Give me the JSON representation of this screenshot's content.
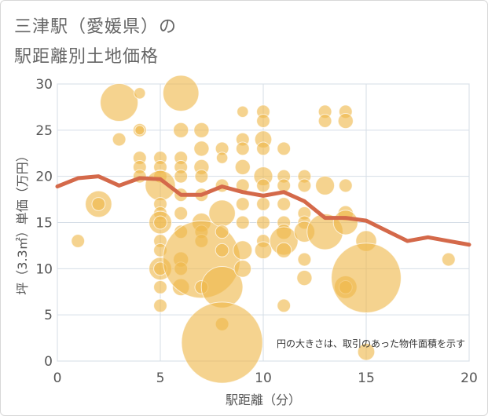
{
  "title_line1": "三津駅（愛媛県）の",
  "title_line2": "駅距離別土地価格",
  "chart_data": {
    "type": "scatter",
    "xlabel": "駅距離（分）",
    "ylabel": "坪（3.3㎡）単価（万円）",
    "xlim": [
      0,
      20
    ],
    "ylim": [
      0,
      30
    ],
    "xticks": [
      0,
      5,
      10,
      15,
      20
    ],
    "yticks": [
      0,
      5,
      10,
      15,
      20,
      25,
      30
    ],
    "annotation": "円の大きさは、取引のあった物件面積を示す",
    "colors": {
      "bubble": "#efb84a",
      "line": "#d4694a",
      "grid": "#d5dde6"
    },
    "bubbles": [
      {
        "x": 1,
        "y": 13,
        "s": 1.4
      },
      {
        "x": 2,
        "y": 17,
        "s": 2.8
      },
      {
        "x": 2,
        "y": 17,
        "s": 1.4
      },
      {
        "x": 3,
        "y": 28,
        "s": 4.0
      },
      {
        "x": 3,
        "y": 24,
        "s": 1.4
      },
      {
        "x": 4,
        "y": 29,
        "s": 1.2
      },
      {
        "x": 4,
        "y": 25,
        "s": 1.4
      },
      {
        "x": 4,
        "y": 25,
        "s": 1.0
      },
      {
        "x": 4,
        "y": 22,
        "s": 1.4
      },
      {
        "x": 4,
        "y": 21,
        "s": 1.4
      },
      {
        "x": 4,
        "y": 20,
        "s": 1.4
      },
      {
        "x": 5,
        "y": 22,
        "s": 1.4
      },
      {
        "x": 5,
        "y": 21,
        "s": 1.4
      },
      {
        "x": 5,
        "y": 20,
        "s": 1.4
      },
      {
        "x": 5,
        "y": 19,
        "s": 3.2
      },
      {
        "x": 5,
        "y": 17,
        "s": 1.4
      },
      {
        "x": 5,
        "y": 16,
        "s": 1.4
      },
      {
        "x": 5,
        "y": 15,
        "s": 2.4
      },
      {
        "x": 5,
        "y": 15,
        "s": 1.4
      },
      {
        "x": 5,
        "y": 13,
        "s": 1.4
      },
      {
        "x": 5,
        "y": 12,
        "s": 1.4
      },
      {
        "x": 5,
        "y": 10,
        "s": 2.4
      },
      {
        "x": 5,
        "y": 10,
        "s": 1.4
      },
      {
        "x": 5,
        "y": 8,
        "s": 1.4
      },
      {
        "x": 5,
        "y": 6,
        "s": 1.4
      },
      {
        "x": 6,
        "y": 29,
        "s": 3.8
      },
      {
        "x": 6,
        "y": 25,
        "s": 1.6
      },
      {
        "x": 6,
        "y": 22,
        "s": 1.4
      },
      {
        "x": 6,
        "y": 21,
        "s": 1.4
      },
      {
        "x": 6,
        "y": 20,
        "s": 1.4
      },
      {
        "x": 6,
        "y": 18,
        "s": 1.4
      },
      {
        "x": 6,
        "y": 16,
        "s": 1.4
      },
      {
        "x": 6,
        "y": 14,
        "s": 1.4
      },
      {
        "x": 6,
        "y": 11,
        "s": 1.6
      },
      {
        "x": 6,
        "y": 10,
        "s": 1.4
      },
      {
        "x": 6,
        "y": 8,
        "s": 1.8
      },
      {
        "x": 7,
        "y": 25,
        "s": 1.6
      },
      {
        "x": 7,
        "y": 23,
        "s": 1.6
      },
      {
        "x": 7,
        "y": 21,
        "s": 1.6
      },
      {
        "x": 7,
        "y": 20,
        "s": 1.4
      },
      {
        "x": 7,
        "y": 18,
        "s": 1.4
      },
      {
        "x": 7,
        "y": 15,
        "s": 2.0
      },
      {
        "x": 7,
        "y": 14,
        "s": 1.4
      },
      {
        "x": 7,
        "y": 13,
        "s": 1.4
      },
      {
        "x": 7,
        "y": 11,
        "s": 8.2
      },
      {
        "x": 7,
        "y": 8,
        "s": 1.4
      },
      {
        "x": 8,
        "y": 23,
        "s": 1.4
      },
      {
        "x": 8,
        "y": 22,
        "s": 1.2
      },
      {
        "x": 8,
        "y": 19,
        "s": 1.4
      },
      {
        "x": 8,
        "y": 16,
        "s": 2.8
      },
      {
        "x": 8,
        "y": 14,
        "s": 1.4
      },
      {
        "x": 8,
        "y": 12,
        "s": 1.4
      },
      {
        "x": 8,
        "y": 8,
        "s": 4.4
      },
      {
        "x": 8,
        "y": 4,
        "s": 1.4
      },
      {
        "x": 8,
        "y": 2,
        "s": 8.6
      },
      {
        "x": 9,
        "y": 27,
        "s": 1.2
      },
      {
        "x": 9,
        "y": 24,
        "s": 1.4
      },
      {
        "x": 9,
        "y": 23,
        "s": 1.4
      },
      {
        "x": 9,
        "y": 21,
        "s": 1.6
      },
      {
        "x": 9,
        "y": 19,
        "s": 1.4
      },
      {
        "x": 9,
        "y": 17,
        "s": 1.4
      },
      {
        "x": 9,
        "y": 15,
        "s": 1.4
      },
      {
        "x": 9,
        "y": 12,
        "s": 2.0
      },
      {
        "x": 9,
        "y": 10,
        "s": 1.8
      },
      {
        "x": 10,
        "y": 27,
        "s": 1.4
      },
      {
        "x": 10,
        "y": 26,
        "s": 1.4
      },
      {
        "x": 10,
        "y": 24,
        "s": 1.8
      },
      {
        "x": 10,
        "y": 23,
        "s": 1.4
      },
      {
        "x": 10,
        "y": 20,
        "s": 2.0
      },
      {
        "x": 10,
        "y": 19,
        "s": 1.4
      },
      {
        "x": 10,
        "y": 17,
        "s": 1.4
      },
      {
        "x": 10,
        "y": 15,
        "s": 1.4
      },
      {
        "x": 10,
        "y": 13,
        "s": 1.4
      },
      {
        "x": 10,
        "y": 12,
        "s": 1.8
      },
      {
        "x": 11,
        "y": 23,
        "s": 1.4
      },
      {
        "x": 11,
        "y": 20,
        "s": 1.4
      },
      {
        "x": 11,
        "y": 19,
        "s": 1.4
      },
      {
        "x": 11,
        "y": 17,
        "s": 1.4
      },
      {
        "x": 11,
        "y": 15,
        "s": 1.4
      },
      {
        "x": 11,
        "y": 14,
        "s": 1.6
      },
      {
        "x": 11,
        "y": 13,
        "s": 3.0
      },
      {
        "x": 11,
        "y": 12,
        "s": 1.6
      },
      {
        "x": 11,
        "y": 6,
        "s": 1.4
      },
      {
        "x": 12,
        "y": 20,
        "s": 1.4
      },
      {
        "x": 12,
        "y": 19,
        "s": 1.4
      },
      {
        "x": 12,
        "y": 16,
        "s": 1.4
      },
      {
        "x": 12,
        "y": 15,
        "s": 1.4
      },
      {
        "x": 12,
        "y": 14,
        "s": 2.2
      },
      {
        "x": 12,
        "y": 11,
        "s": 1.4
      },
      {
        "x": 12,
        "y": 9,
        "s": 1.6
      },
      {
        "x": 13,
        "y": 27,
        "s": 1.4
      },
      {
        "x": 13,
        "y": 26,
        "s": 1.4
      },
      {
        "x": 13,
        "y": 19,
        "s": 2.0
      },
      {
        "x": 13,
        "y": 14,
        "s": 3.8
      },
      {
        "x": 14,
        "y": 27,
        "s": 1.4
      },
      {
        "x": 14,
        "y": 26,
        "s": 1.6
      },
      {
        "x": 14,
        "y": 19,
        "s": 1.4
      },
      {
        "x": 14,
        "y": 16,
        "s": 1.6
      },
      {
        "x": 14,
        "y": 15,
        "s": 2.6
      },
      {
        "x": 14,
        "y": 8,
        "s": 2.4
      },
      {
        "x": 14,
        "y": 8,
        "s": 1.4
      },
      {
        "x": 15,
        "y": 13,
        "s": 2.2
      },
      {
        "x": 15,
        "y": 9,
        "s": 7.4
      },
      {
        "x": 15,
        "y": 1,
        "s": 1.8
      },
      {
        "x": 19,
        "y": 11,
        "s": 1.4
      }
    ],
    "trend": {
      "x": [
        0,
        1,
        2,
        3,
        4,
        5,
        6,
        7,
        8,
        9,
        10,
        11,
        12,
        13,
        14,
        15,
        16,
        17,
        18,
        19,
        20
      ],
      "y": [
        18.9,
        19.8,
        20.0,
        19.0,
        19.8,
        19.7,
        18.0,
        18.0,
        18.9,
        18.3,
        17.9,
        18.3,
        17.3,
        15.5,
        15.5,
        15.2,
        14.1,
        13.0,
        13.4,
        13.0,
        12.6
      ]
    }
  }
}
